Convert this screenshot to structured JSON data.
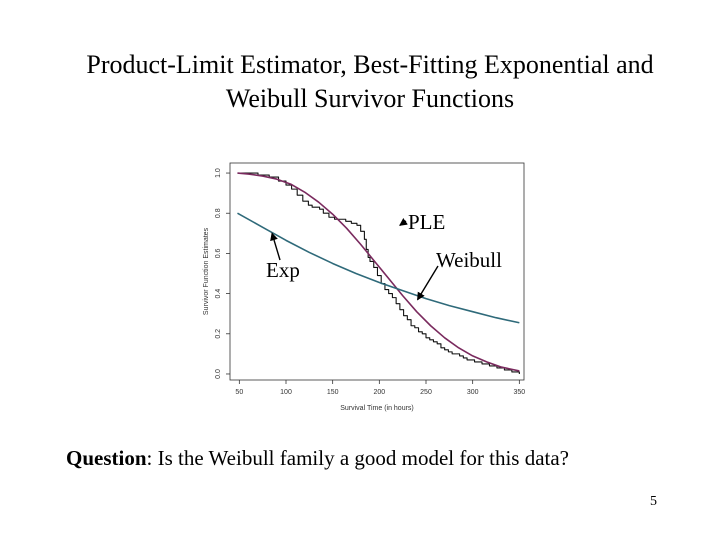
{
  "slide": {
    "title_line1": "Product-Limit Estimator, Best-Fitting Exponential and",
    "title_line2": "Weibull Survivor Functions",
    "question_label": "Question",
    "question_text": ": Is the Weibull family a good model for this data?",
    "page_number": "5"
  },
  "chart_data": {
    "type": "line",
    "xlabel": "Survival Time (in hours)",
    "ylabel": "Survivor Function Estimates",
    "xlim": [
      40,
      355
    ],
    "ylim": [
      -0.03,
      1.05
    ],
    "xticks": [
      50,
      100,
      150,
      200,
      250,
      300,
      350
    ],
    "yticks": [
      0.0,
      0.2,
      0.4,
      0.6,
      0.8,
      1.0
    ],
    "xtick_labels": [
      "50",
      "100",
      "150",
      "200",
      "250",
      "300",
      "350"
    ],
    "ytick_labels": [
      "0.0",
      "0.2",
      "0.4",
      "0.6",
      "0.8",
      "1.0"
    ],
    "series": [
      {
        "name": "PLE",
        "style": "step",
        "color": "#111111",
        "x": [
          48,
          70,
          82,
          92,
          100,
          106,
          112,
          118,
          124,
          128,
          132,
          136,
          140,
          146,
          152,
          158,
          164,
          170,
          176,
          180,
          184,
          186,
          188,
          190,
          194,
          198,
          202,
          206,
          210,
          214,
          218,
          222,
          226,
          230,
          234,
          238,
          242,
          246,
          250,
          254,
          258,
          262,
          266,
          270,
          274,
          278,
          282,
          286,
          290,
          294,
          298,
          302,
          306,
          310,
          314,
          318,
          322,
          326,
          330,
          334,
          338,
          342,
          346,
          350
        ],
        "values": [
          1.0,
          0.99,
          0.98,
          0.96,
          0.94,
          0.92,
          0.89,
          0.86,
          0.84,
          0.83,
          0.83,
          0.82,
          0.8,
          0.78,
          0.77,
          0.77,
          0.76,
          0.75,
          0.74,
          0.71,
          0.67,
          0.62,
          0.58,
          0.56,
          0.53,
          0.49,
          0.45,
          0.42,
          0.4,
          0.38,
          0.35,
          0.32,
          0.29,
          0.27,
          0.24,
          0.23,
          0.21,
          0.2,
          0.18,
          0.17,
          0.16,
          0.15,
          0.13,
          0.12,
          0.11,
          0.1,
          0.1,
          0.09,
          0.08,
          0.07,
          0.07,
          0.06,
          0.06,
          0.05,
          0.05,
          0.04,
          0.04,
          0.03,
          0.03,
          0.02,
          0.02,
          0.01,
          0.01,
          0.0
        ]
      },
      {
        "name": "Weibull",
        "style": "line",
        "color": "#7a2a5e",
        "x": [
          48,
          60,
          75,
          90,
          105,
          120,
          135,
          150,
          165,
          180,
          195,
          210,
          225,
          240,
          255,
          270,
          285,
          300,
          315,
          330,
          350
        ],
        "values": [
          1.0,
          0.995,
          0.985,
          0.97,
          0.945,
          0.905,
          0.855,
          0.795,
          0.725,
          0.645,
          0.56,
          0.475,
          0.39,
          0.31,
          0.24,
          0.18,
          0.13,
          0.09,
          0.06,
          0.035,
          0.015
        ]
      },
      {
        "name": "Exp",
        "style": "line",
        "color": "#2f6a7a",
        "x": [
          48,
          75,
          100,
          125,
          150,
          175,
          200,
          225,
          250,
          275,
          300,
          325,
          350
        ],
        "values": [
          0.8,
          0.73,
          0.665,
          0.605,
          0.55,
          0.5,
          0.455,
          0.415,
          0.375,
          0.34,
          0.31,
          0.28,
          0.255
        ]
      }
    ],
    "annotations": [
      {
        "text": "PLE",
        "points_to_x": 222,
        "points_to_y": 0.74
      },
      {
        "text": "Weibull",
        "points_to_x": 241,
        "points_to_y": 0.37
      },
      {
        "text": "Exp",
        "points_to_x": 85,
        "points_to_y": 0.7
      }
    ]
  }
}
